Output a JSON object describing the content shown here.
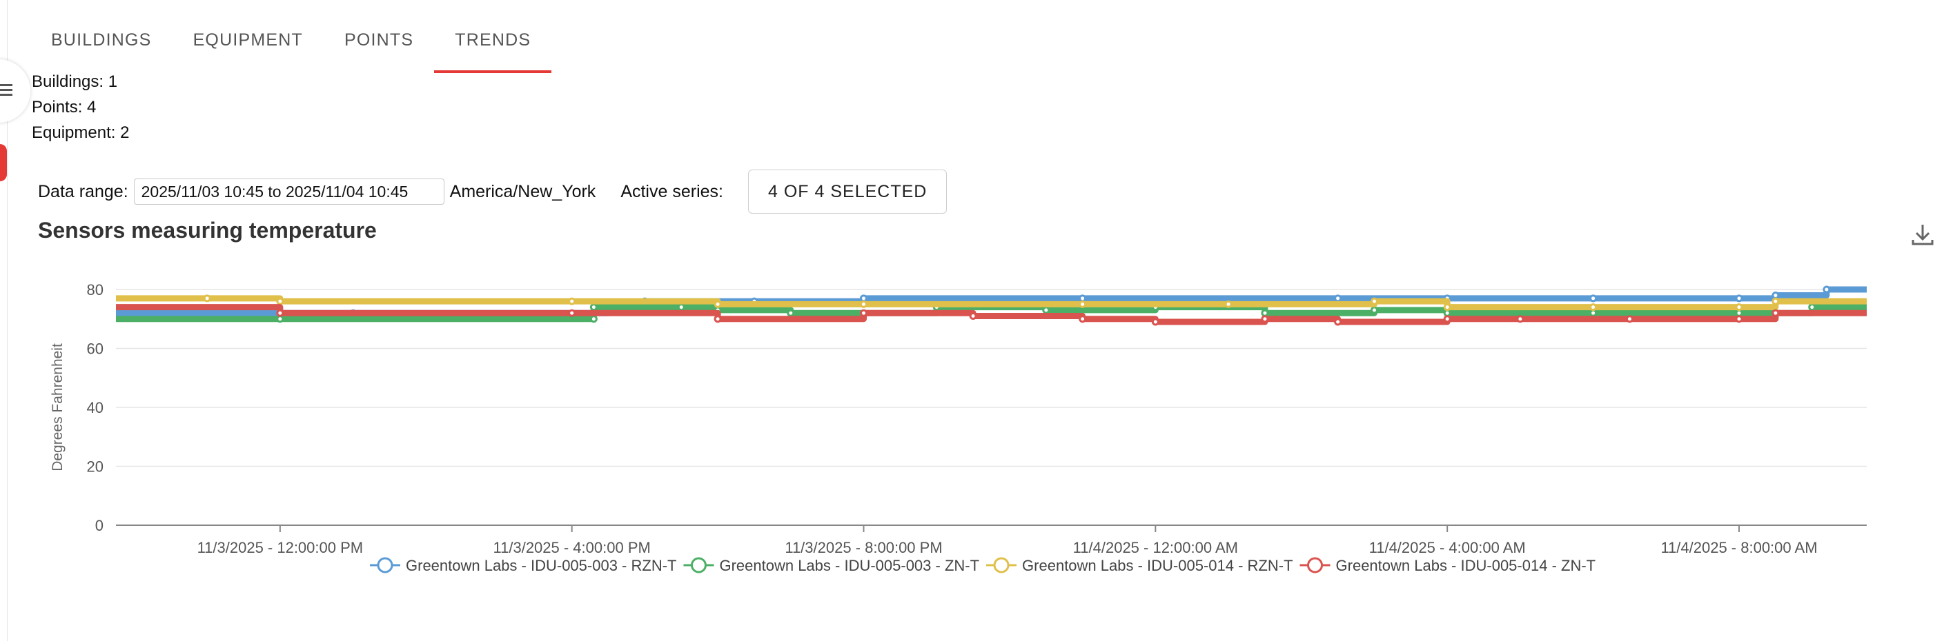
{
  "tabs": [
    {
      "label": "BUILDINGS",
      "active": false
    },
    {
      "label": "EQUIPMENT",
      "active": false
    },
    {
      "label": "POINTS",
      "active": false
    },
    {
      "label": "TRENDS",
      "active": true
    }
  ],
  "summary": {
    "buildings": "Buildings: 1",
    "points": "Points: 4",
    "equipment": "Equipment: 2"
  },
  "controls": {
    "data_range_label": "Data range:",
    "data_range_value": "2025/11/03 10:45 to 2025/11/04 10:45",
    "timezone": "America/New_York",
    "active_series_label": "Active series:",
    "active_series_button": "4 OF 4 SELECTED"
  },
  "chart_data": {
    "type": "line",
    "title": "Sensors measuring temperature",
    "ylabel": "Degrees Fahrenheit",
    "xlabel": "",
    "ylim": [
      0,
      80
    ],
    "yticks": [
      0,
      20,
      40,
      60,
      80
    ],
    "xticks": [
      {
        "x": 1.0,
        "label": "11/3/2025 - 12:00:00 PM"
      },
      {
        "x": 5.0,
        "label": "11/3/2025 - 4:00:00 PM"
      },
      {
        "x": 9.0,
        "label": "11/3/2025 - 8:00:00 PM"
      },
      {
        "x": 13.0,
        "label": "11/4/2025 - 12:00:00 AM"
      },
      {
        "x": 17.0,
        "label": "11/4/2025 - 4:00:00 AM"
      },
      {
        "x": 21.0,
        "label": "11/4/2025 - 8:00:00 AM"
      }
    ],
    "x_unit": "hours from 11/3/2025 11:00 AM",
    "xlim": [
      -1.25,
      22.75
    ],
    "grid": true,
    "legend": "bottom-center",
    "series": [
      {
        "name": "Greentown Labs - IDU-005-003 - RZN-T",
        "color": "#5b9bd5",
        "points": [
          [
            -1.25,
            72
          ],
          [
            2,
            72
          ],
          [
            5.5,
            73
          ],
          [
            6,
            76
          ],
          [
            7.5,
            76
          ],
          [
            9,
            77
          ],
          [
            12,
            77
          ],
          [
            15.5,
            77
          ],
          [
            17,
            77
          ],
          [
            19,
            77
          ],
          [
            21,
            77
          ],
          [
            21.5,
            78
          ],
          [
            22.2,
            80
          ],
          [
            22.75,
            80
          ]
        ]
      },
      {
        "name": "Greentown Labs - IDU-005-003 - ZN-T",
        "color": "#4caf66",
        "points": [
          [
            -1.25,
            70
          ],
          [
            1,
            70
          ],
          [
            5.3,
            70
          ],
          [
            5.3,
            74
          ],
          [
            6.5,
            74
          ],
          [
            7,
            73
          ],
          [
            8,
            72
          ],
          [
            10,
            74
          ],
          [
            11.5,
            73
          ],
          [
            13,
            74
          ],
          [
            14.5,
            72
          ],
          [
            16,
            73
          ],
          [
            17,
            72
          ],
          [
            19,
            72
          ],
          [
            21,
            72
          ],
          [
            22,
            74
          ],
          [
            22.75,
            74
          ]
        ]
      },
      {
        "name": "Greentown Labs - IDU-005-014 - RZN-T",
        "color": "#e0c04a",
        "points": [
          [
            -1.25,
            77
          ],
          [
            0,
            77
          ],
          [
            1,
            76
          ],
          [
            5,
            76
          ],
          [
            7,
            75
          ],
          [
            9,
            75
          ],
          [
            12,
            75
          ],
          [
            14,
            75
          ],
          [
            16,
            76
          ],
          [
            17,
            74
          ],
          [
            19,
            74
          ],
          [
            21,
            74
          ],
          [
            21.5,
            76
          ],
          [
            22.75,
            76
          ]
        ]
      },
      {
        "name": "Greentown Labs - IDU-005-014 - ZN-T",
        "color": "#d9534f",
        "points": [
          [
            -1.25,
            74
          ],
          [
            1,
            72
          ],
          [
            5,
            72
          ],
          [
            7,
            70
          ],
          [
            9,
            72
          ],
          [
            10.5,
            71
          ],
          [
            12,
            70
          ],
          [
            13,
            69
          ],
          [
            14.5,
            70
          ],
          [
            15.5,
            69
          ],
          [
            17,
            70
          ],
          [
            18,
            70
          ],
          [
            19.5,
            70
          ],
          [
            21,
            70
          ],
          [
            21.5,
            72
          ],
          [
            22.75,
            72
          ]
        ]
      }
    ]
  }
}
